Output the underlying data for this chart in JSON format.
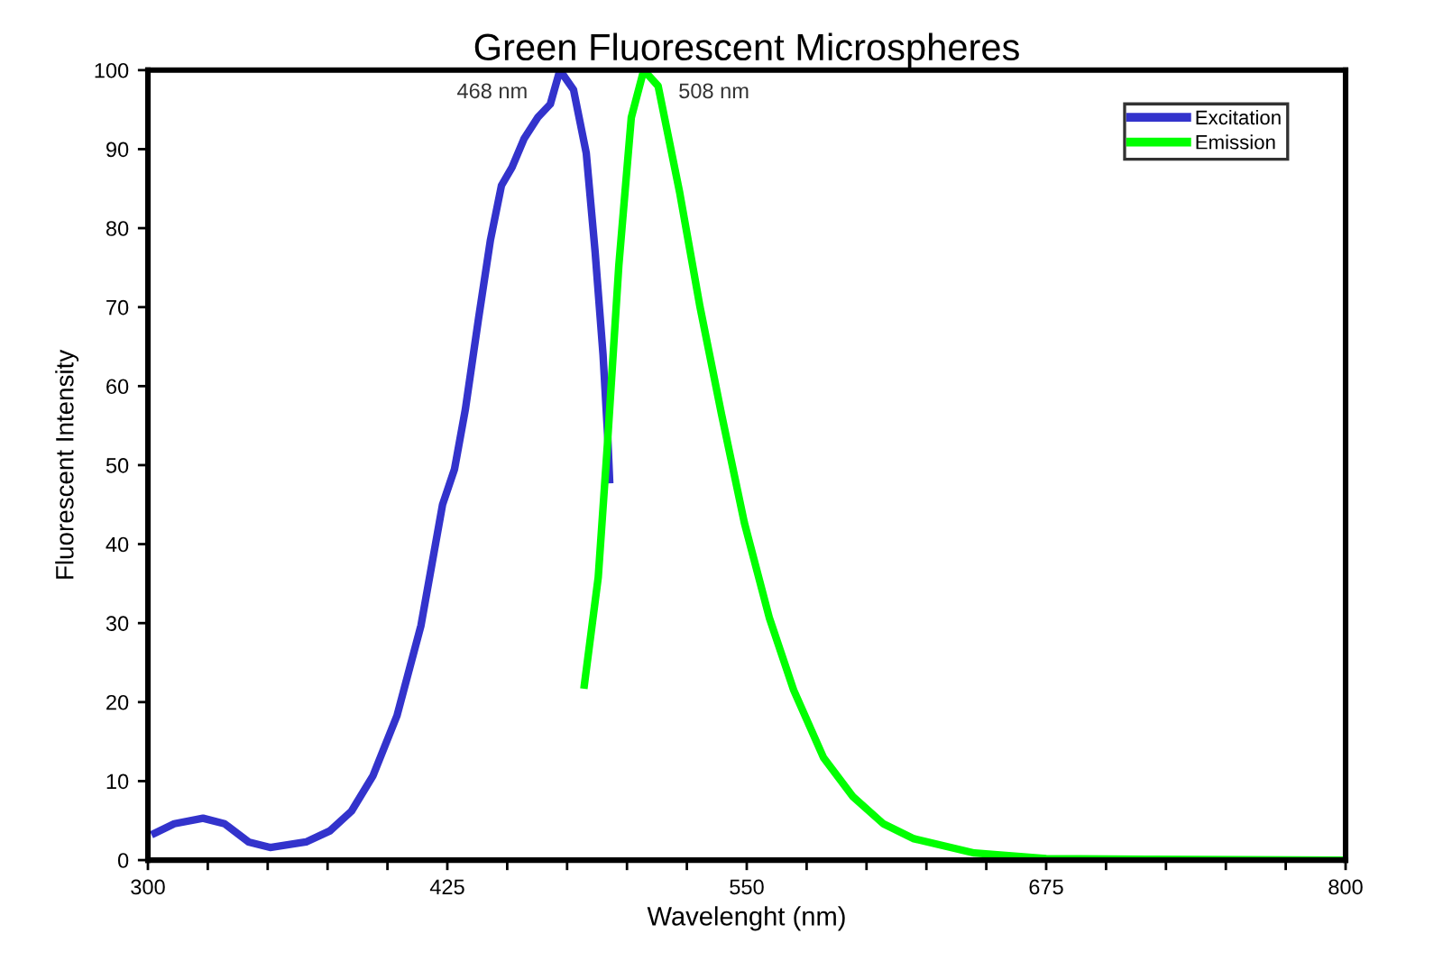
{
  "chart_data": {
    "type": "line",
    "title": "Green Fluorescent Microspheres",
    "xlabel": "Wavelenght (nm)",
    "ylabel": "Fluorescent Intensity",
    "xlim": [
      300,
      800
    ],
    "ylim": [
      0,
      100
    ],
    "xticks": [
      300,
      {
        "value": 325,
        "label": null
      },
      {
        "value": 350,
        "label": null
      },
      {
        "value": 375,
        "label": null
      },
      {
        "value": 400,
        "label": null
      },
      425,
      {
        "value": 450,
        "label": null
      },
      {
        "value": 475,
        "label": null
      },
      {
        "value": 500,
        "label": null
      },
      {
        "value": 525,
        "label": null
      },
      550,
      {
        "value": 575,
        "label": null
      },
      {
        "value": 600,
        "label": null
      },
      {
        "value": 625,
        "label": null
      },
      {
        "value": 650,
        "label": null
      },
      675,
      {
        "value": 700,
        "label": null
      },
      {
        "value": 725,
        "label": null
      },
      {
        "value": 750,
        "label": null
      },
      {
        "value": 775,
        "label": null
      },
      800
    ],
    "yticks": [
      0,
      10,
      20,
      30,
      40,
      50,
      60,
      70,
      80,
      90,
      100
    ],
    "grid": false,
    "legend": "top right",
    "marker": "none",
    "line_style": "solid",
    "annotations": [
      "468 nm",
      "508 nm"
    ],
    "series": [
      {
        "name": "Excitation",
        "color": "#3333cc",
        "x": [
          301.5,
          311,
          323,
          332,
          342,
          351,
          366,
          376,
          385,
          394,
          404,
          414,
          423,
          428,
          432.5,
          438,
          443,
          447.6,
          452,
          457,
          462.7,
          468,
          472,
          477.7,
          483,
          486.7,
          490,
          492,
          492.8
        ],
        "values": [
          3.2,
          4.6,
          5.3,
          4.6,
          2.3,
          1.6,
          2.3,
          3.7,
          6.2,
          10.7,
          18.3,
          29.7,
          45,
          49.5,
          57,
          68.5,
          78.5,
          85.4,
          87.7,
          91.3,
          94,
          95.7,
          100,
          97.5,
          89.5,
          77,
          64,
          53.4,
          47.7
        ]
      },
      {
        "name": "Emission",
        "color": "#00ff00",
        "x": [
          482,
          488,
          491.8,
          496.6,
          501.8,
          507,
          513,
          522,
          530.5,
          539.5,
          549,
          559.5,
          569.6,
          582,
          594.4,
          607,
          619.8,
          645,
          675,
          720,
          800
        ],
        "values": [
          21.7,
          35.8,
          52.5,
          75.3,
          94,
          100,
          98,
          84.5,
          70,
          56.4,
          42.7,
          30.6,
          21.5,
          13,
          8,
          4.6,
          2.7,
          0.9,
          0.2,
          0.1,
          0
        ]
      }
    ]
  }
}
